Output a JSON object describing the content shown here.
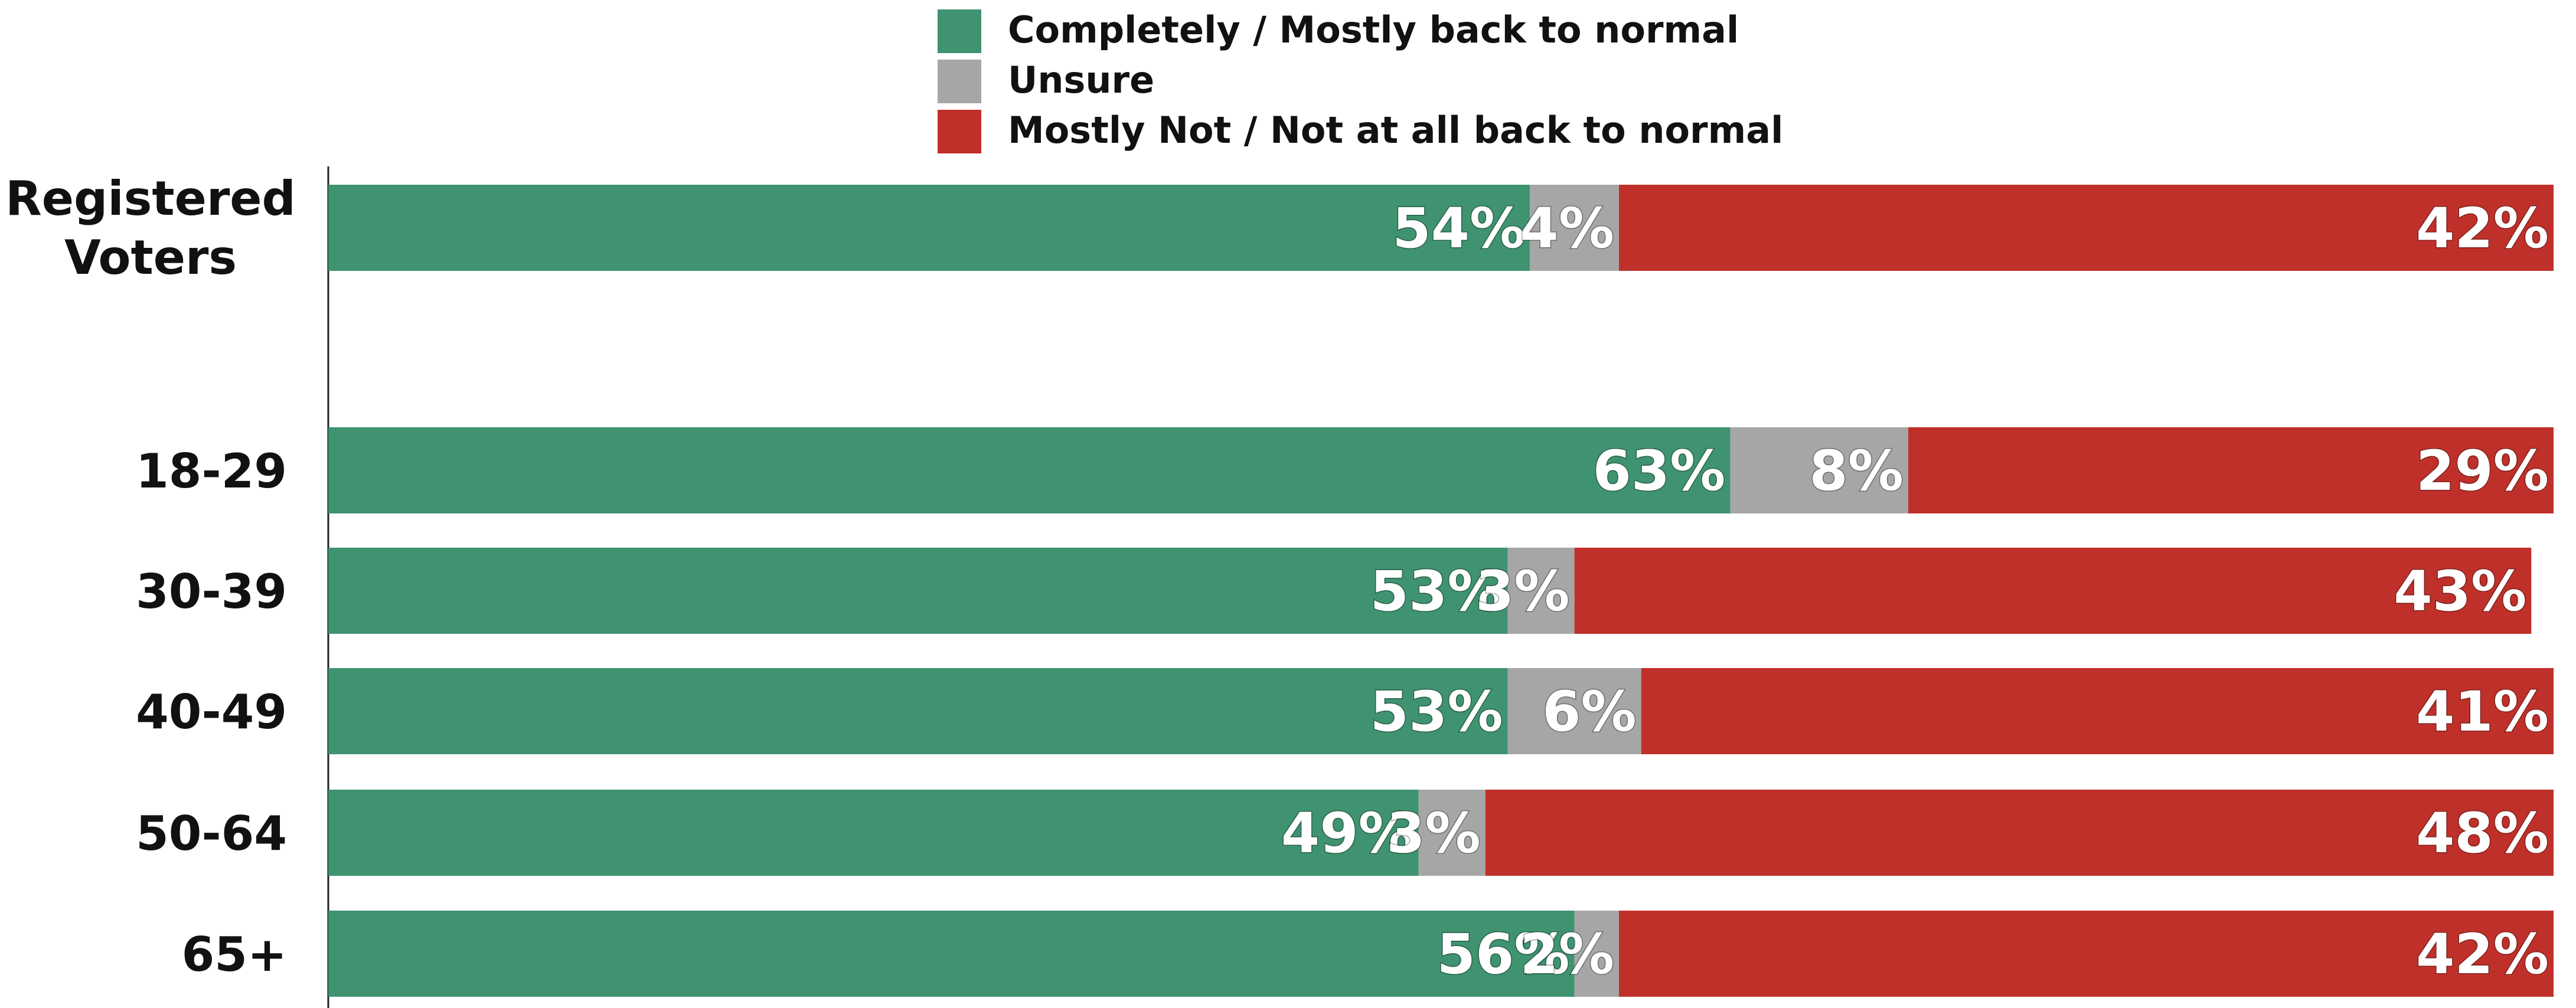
{
  "chart_data": {
    "type": "bar",
    "orientation": "horizontal",
    "stacked": true,
    "percent": true,
    "grid": false,
    "legend_position": "top-center",
    "categories": [
      "Registered Voters",
      "18-29",
      "30-39",
      "40-49",
      "50-64",
      "65+"
    ],
    "series": [
      {
        "name": "Completely / Mostly back to normal",
        "color": "#3F9370",
        "values": [
          54,
          63,
          53,
          53,
          49,
          56
        ]
      },
      {
        "name": "Unsure",
        "color": "#A6A6A6",
        "values": [
          4,
          8,
          3,
          6,
          3,
          2
        ]
      },
      {
        "name": "Mostly Not / Not at all back to normal",
        "color": "#C0302A",
        "values": [
          42,
          29,
          43,
          41,
          48,
          42
        ]
      }
    ],
    "xlim": [
      0,
      100
    ]
  }
}
